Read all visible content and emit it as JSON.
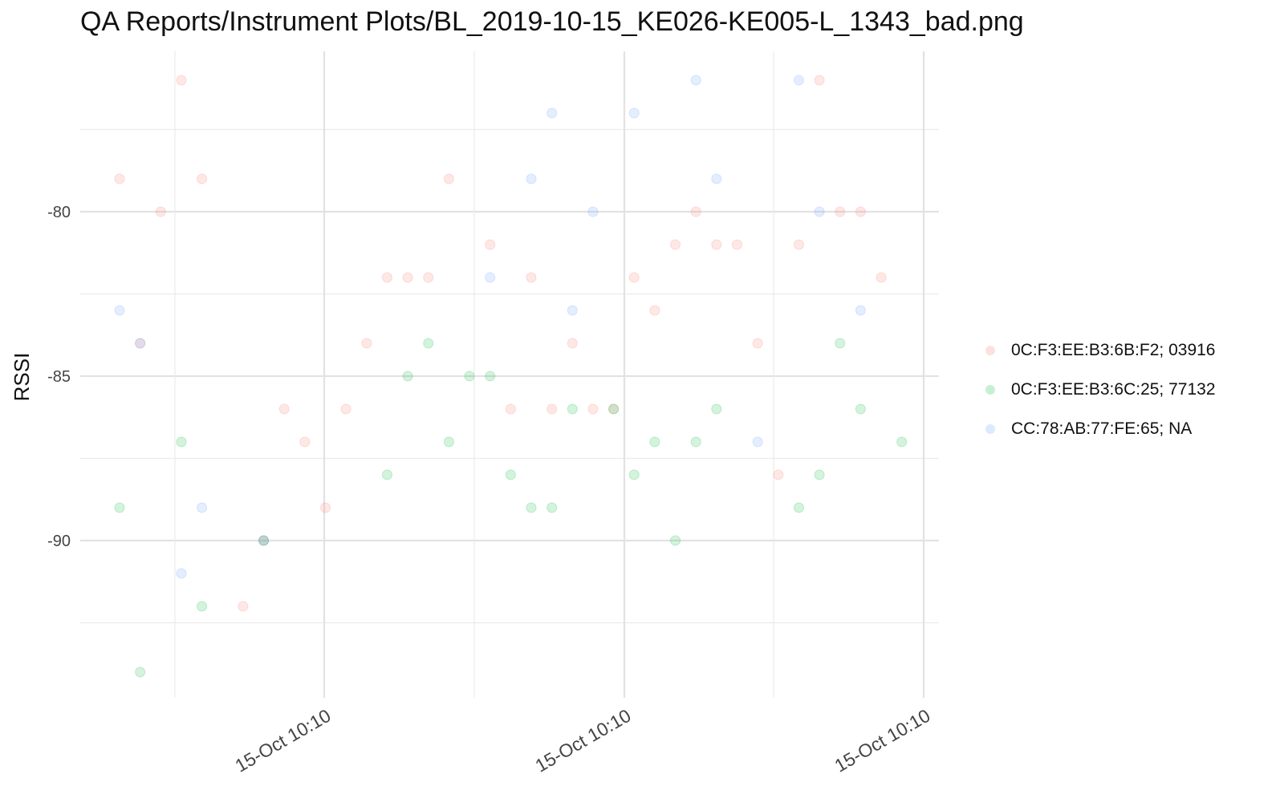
{
  "title": "QA Reports/Instrument Plots/BL_2019-10-15_KE026-KE005-L_1343_bad.png",
  "chart_data": {
    "type": "scatter",
    "title": "QA Reports/Instrument Plots/BL_2019-10-15_KE026-KE005-L_1343_bad.png",
    "xlabel": "",
    "ylabel": "RSSI",
    "x_tick_labels": [
      "15-Oct 10:10",
      "15-Oct 10:10",
      "15-Oct 10:10"
    ],
    "x_tick_values": [
      10,
      25,
      40
    ],
    "y_tick_labels": [
      "-80",
      "-85",
      "-90"
    ],
    "y_tick_values": [
      -80,
      -85,
      -90
    ],
    "xlim": [
      5.3,
      40.7
    ],
    "ylim": [
      -94.5,
      -74.5
    ],
    "grid": true,
    "legend": "right",
    "series": [
      {
        "name": "0C:F3:EE:B3:6B:F2; 03916",
        "color": "#F8766D",
        "points": [
          [
            7,
            -79
          ],
          [
            9,
            -80
          ],
          [
            10,
            -76
          ],
          [
            11,
            -79
          ],
          [
            13,
            -92
          ],
          [
            15,
            -86
          ],
          [
            16,
            -87
          ],
          [
            17,
            -89
          ],
          [
            18,
            -86
          ],
          [
            19,
            -84
          ],
          [
            20,
            -82
          ],
          [
            21,
            -82
          ],
          [
            22,
            -82
          ],
          [
            23,
            -79
          ],
          [
            25,
            -81
          ],
          [
            26,
            -86
          ],
          [
            27,
            -82
          ],
          [
            28,
            -86
          ],
          [
            29,
            -84
          ],
          [
            30,
            -86
          ],
          [
            31,
            -86
          ],
          [
            32,
            -82
          ],
          [
            33,
            -83
          ],
          [
            34,
            -81
          ],
          [
            35,
            -80
          ],
          [
            36,
            -81
          ],
          [
            37,
            -81
          ],
          [
            38,
            -84
          ],
          [
            39,
            -88
          ],
          [
            40,
            -81
          ],
          [
            41,
            -76
          ],
          [
            42,
            -80
          ],
          [
            43,
            -80
          ],
          [
            44,
            -82
          ],
          [
            8,
            -84
          ],
          [
            14,
            -90
          ]
        ]
      },
      {
        "name": "0C:F3:EE:B3:6C:25; 77132",
        "color": "#00BA38",
        "points": [
          [
            7,
            -89
          ],
          [
            8,
            -94
          ],
          [
            10,
            -87
          ],
          [
            11,
            -92
          ],
          [
            14,
            -90
          ],
          [
            20,
            -88
          ],
          [
            21,
            -85
          ],
          [
            22,
            -84
          ],
          [
            23,
            -87
          ],
          [
            24,
            -85
          ],
          [
            25,
            -85
          ],
          [
            26,
            -88
          ],
          [
            27,
            -89
          ],
          [
            28,
            -89
          ],
          [
            29,
            -86
          ],
          [
            31,
            -86
          ],
          [
            32,
            -88
          ],
          [
            33,
            -87
          ],
          [
            34,
            -90
          ],
          [
            35,
            -87
          ],
          [
            36,
            -86
          ],
          [
            40,
            -89
          ],
          [
            41,
            -88
          ],
          [
            42,
            -84
          ],
          [
            43,
            -86
          ],
          [
            45,
            -87
          ]
        ]
      },
      {
        "name": "CC:78:AB:77:FE:65; NA",
        "color": "#619CFF",
        "points": [
          [
            7,
            -83
          ],
          [
            8,
            -84
          ],
          [
            10,
            -91
          ],
          [
            11,
            -89
          ],
          [
            14,
            -90
          ],
          [
            25,
            -82
          ],
          [
            27,
            -79
          ],
          [
            28,
            -77
          ],
          [
            29,
            -83
          ],
          [
            30,
            -80
          ],
          [
            32,
            -77
          ],
          [
            35,
            -76
          ],
          [
            36,
            -79
          ],
          [
            38,
            -87
          ],
          [
            40,
            -76
          ],
          [
            41,
            -80
          ],
          [
            43,
            -83
          ]
        ]
      }
    ]
  }
}
